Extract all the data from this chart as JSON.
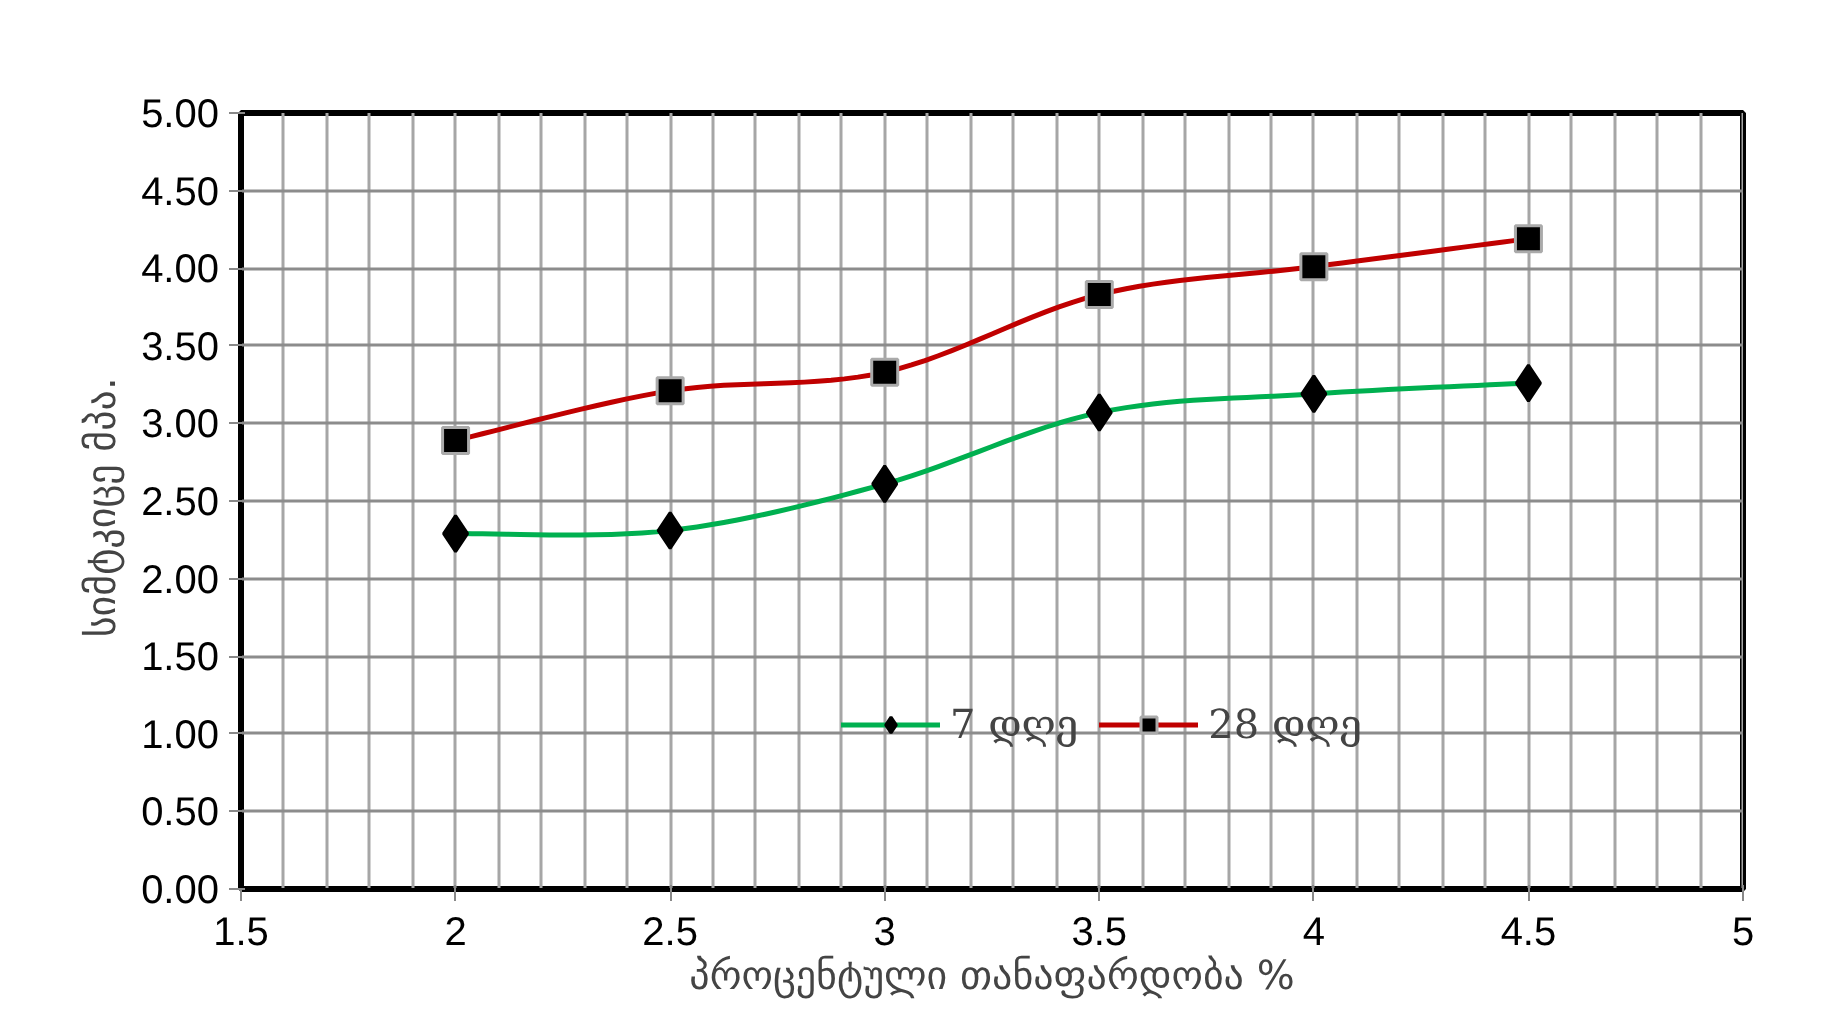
{
  "chart_data": {
    "type": "line",
    "xlabel": "პროცენტული თანაფარდობა %",
    "ylabel": "სიმტკიცე  მპა.",
    "x": [
      2,
      2.5,
      3,
      3.5,
      4,
      4.5
    ],
    "series": [
      {
        "name": "7 დღე",
        "color": "#00b050",
        "marker": "diamond",
        "values": [
          2.29,
          2.31,
          2.61,
          3.07,
          3.19,
          3.26
        ]
      },
      {
        "name": "28 დღე",
        "color": "#c00000",
        "marker": "square",
        "values": [
          2.89,
          3.21,
          3.33,
          3.83,
          4.01,
          4.19
        ]
      }
    ],
    "xlim": [
      1.5,
      5
    ],
    "xticks": [
      1.5,
      2,
      2.5,
      3,
      3.5,
      4,
      4.5,
      5
    ],
    "ylim": [
      0,
      5
    ],
    "yticks": [
      {
        "value": 0,
        "label": "0.00"
      },
      {
        "value": 0.5,
        "label": "0.50"
      },
      {
        "value": 1,
        "label": "1.00"
      },
      {
        "value": 1.5,
        "label": "1.50"
      },
      {
        "value": 2,
        "label": "2.00"
      },
      {
        "value": 2.5,
        "label": "2.50"
      },
      {
        "value": 3,
        "label": "3.00"
      },
      {
        "value": 3.5,
        "label": "3.50"
      },
      {
        "value": 4,
        "label": "4.00"
      },
      {
        "value": 4.5,
        "label": "4.50"
      },
      {
        "value": 5,
        "label": "5.00"
      }
    ],
    "grid": true,
    "legend": "bottom right",
    "line_style": "solid"
  }
}
